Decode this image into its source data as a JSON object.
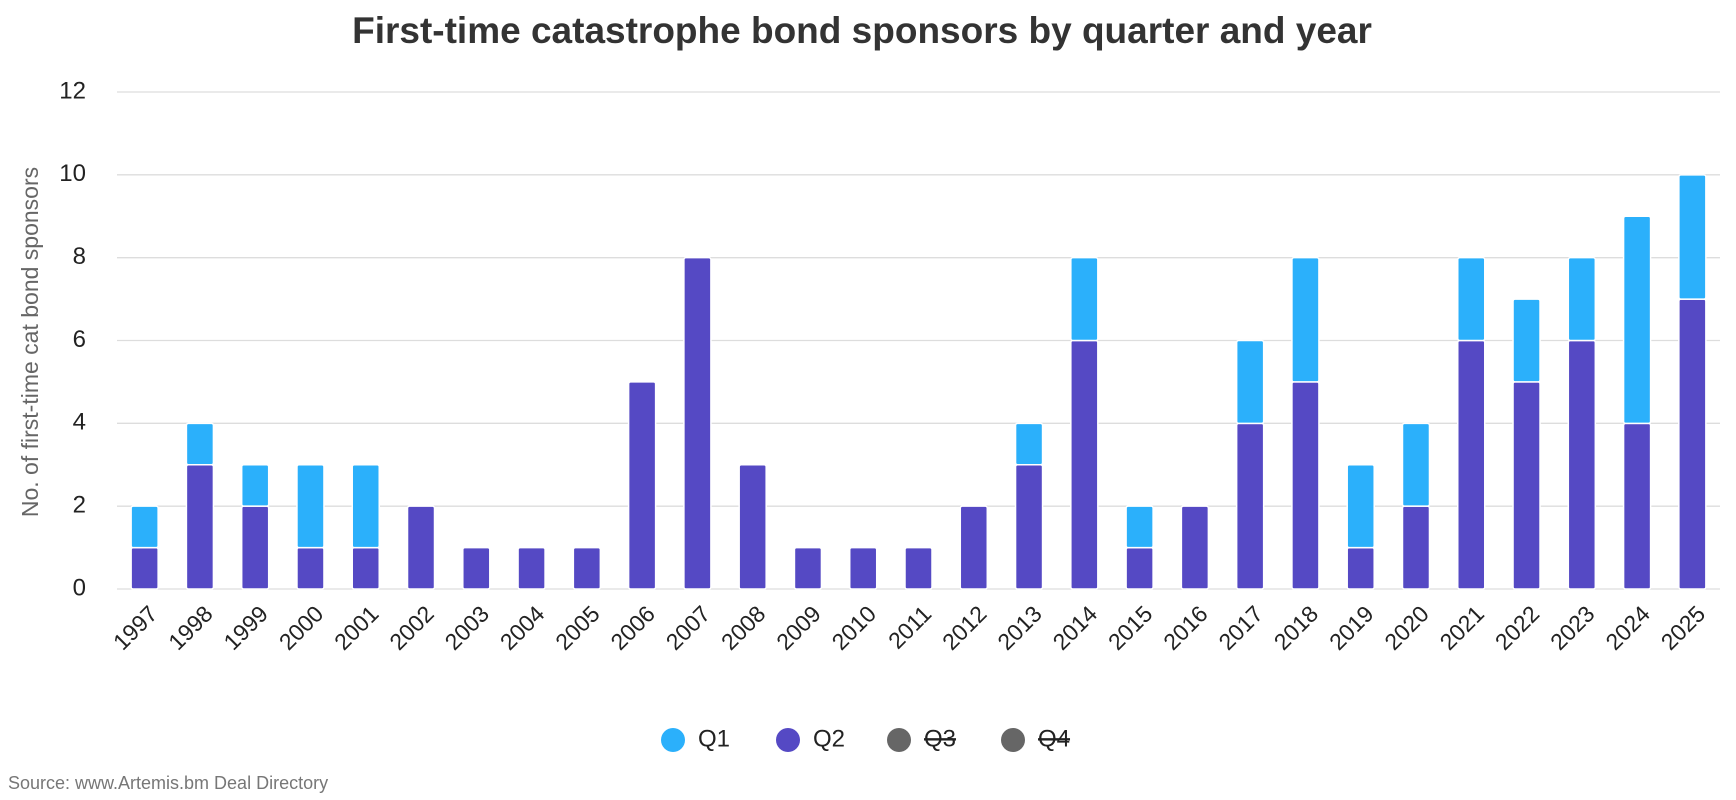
{
  "chart_data": {
    "type": "stacked-bar",
    "title": "First-time catastrophe bond sponsors by quarter and year",
    "y_label": "No. of first-time cat bond sponsors",
    "source": "Source: www.Artemis.bm Deal Directory",
    "categories": [
      "1997",
      "1998",
      "1999",
      "2000",
      "2001",
      "2002",
      "2003",
      "2004",
      "2005",
      "2006",
      "2007",
      "2008",
      "2009",
      "2010",
      "2011",
      "2012",
      "2013",
      "2014",
      "2015",
      "2016",
      "2017",
      "2018",
      "2019",
      "2020",
      "2021",
      "2022",
      "2023",
      "2024",
      "2025"
    ],
    "series": [
      {
        "name": "Q2",
        "color": "#5549c4",
        "values": [
          1,
          3,
          2,
          1,
          1,
          2,
          1,
          1,
          1,
          5,
          8,
          3,
          1,
          1,
          1,
          2,
          3,
          6,
          1,
          2,
          4,
          5,
          1,
          2,
          6,
          5,
          6,
          4,
          7
        ]
      },
      {
        "name": "Q1",
        "color": "#2bb0fb",
        "values": [
          1,
          1,
          1,
          2,
          2,
          0,
          0,
          0,
          0,
          0,
          0,
          0,
          0,
          0,
          0,
          0,
          1,
          2,
          1,
          0,
          2,
          3,
          2,
          2,
          2,
          2,
          2,
          5,
          3
        ]
      },
      {
        "name": "Q3",
        "color": "#666666",
        "hidden": true
      },
      {
        "name": "Q4",
        "color": "#666666",
        "hidden": true
      }
    ],
    "legend_order": [
      1,
      0,
      2,
      3
    ],
    "ylim": [
      0,
      12
    ],
    "yticks": [
      0,
      2,
      4,
      6,
      8,
      10,
      12
    ],
    "grid": true
  }
}
